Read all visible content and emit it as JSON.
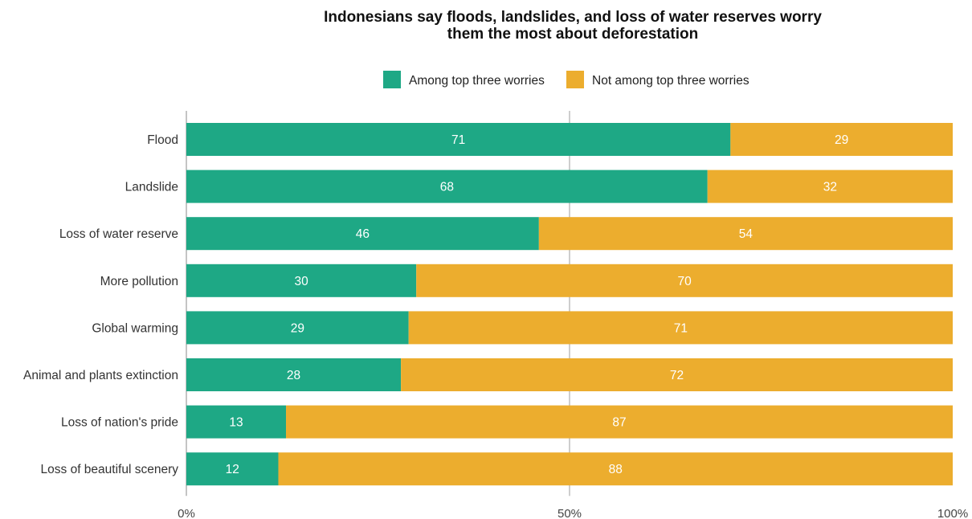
{
  "chart_data": {
    "type": "bar",
    "orientation": "horizontal",
    "stacked": true,
    "title_lines": [
      "Indonesians say floods, landslides, and loss of water reserves worry",
      "them the most about deforestation"
    ],
    "categories": [
      "Flood",
      "Landslide",
      "Loss of water reserve",
      "More pollution",
      "Global warming",
      "Animal and plants extinction",
      "Loss of nation's pride",
      "Loss of beautiful scenery"
    ],
    "series": [
      {
        "name": "Among top three worries",
        "color": "#1ea885",
        "values": [
          71,
          68,
          46,
          30,
          29,
          28,
          13,
          12
        ]
      },
      {
        "name": "Not among top three worries",
        "color": "#ecad2e",
        "values": [
          29,
          32,
          54,
          70,
          71,
          72,
          87,
          88
        ]
      }
    ],
    "x_ticks": [
      {
        "value": 0,
        "label": "0%"
      },
      {
        "value": 50,
        "label": "50%"
      },
      {
        "value": 100,
        "label": "100%"
      }
    ],
    "xlim": [
      0,
      100
    ],
    "gridlines": [
      50
    ],
    "legend_position": "top"
  }
}
